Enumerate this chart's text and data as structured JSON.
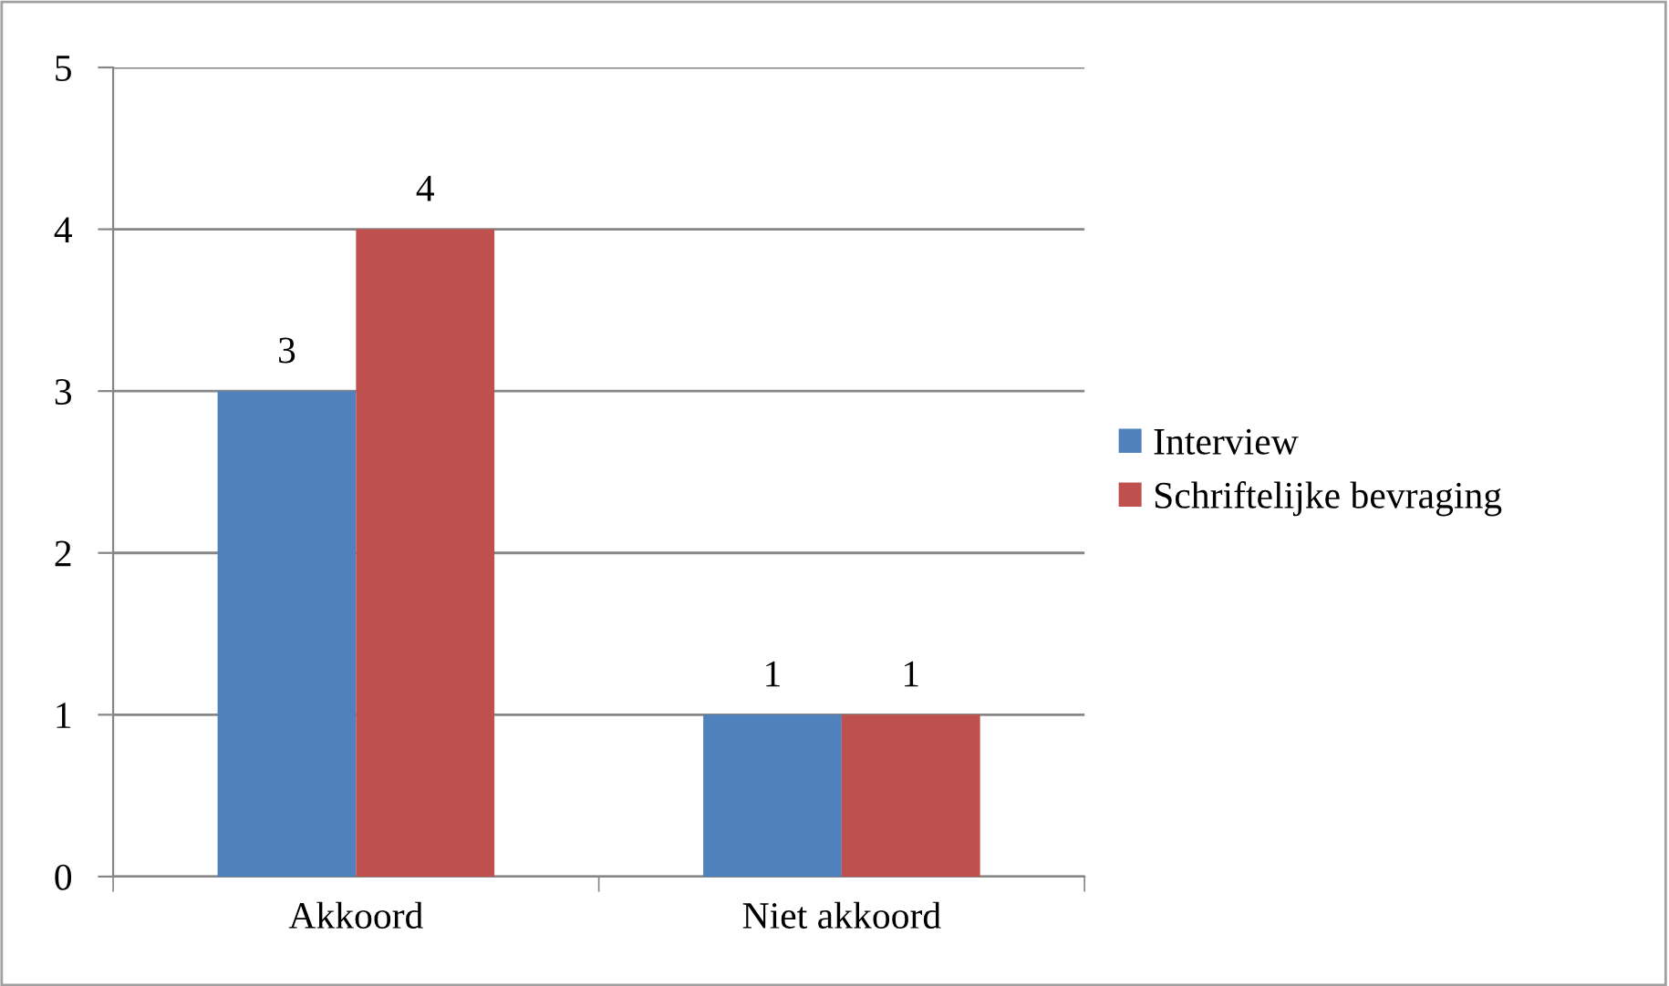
{
  "chart_data": {
    "type": "bar",
    "categories": [
      "Akkoord",
      "Niet akkoord"
    ],
    "series": [
      {
        "name": "Interview",
        "color": "#4f81bd",
        "values": [
          3,
          1
        ]
      },
      {
        "name": "Schriftelijke bevraging",
        "color": "#c0504d",
        "values": [
          4,
          1
        ]
      }
    ],
    "ylim": [
      0,
      5
    ],
    "yticks": [
      0,
      1,
      2,
      3,
      4,
      5
    ],
    "grid": "y",
    "legend": "right",
    "data_labels": true
  }
}
